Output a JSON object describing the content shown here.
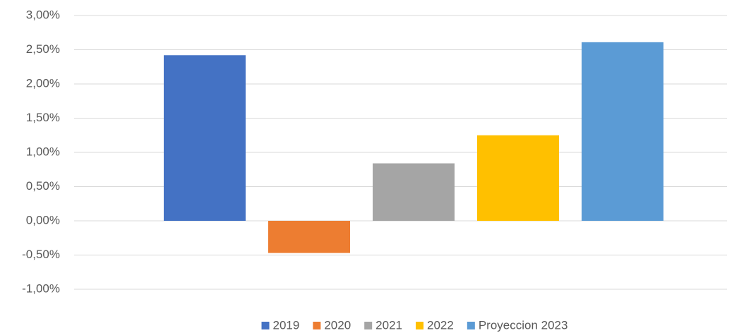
{
  "chart_data": {
    "type": "bar",
    "categories": [
      null
    ],
    "series": [
      {
        "name": "2019",
        "color": "#4472c4",
        "values": [
          2.42
        ]
      },
      {
        "name": "2020",
        "color": "#ed7d31",
        "values": [
          -0.47
        ]
      },
      {
        "name": "2021",
        "color": "#a5a5a5",
        "values": [
          0.84
        ]
      },
      {
        "name": "2022",
        "color": "#ffc000",
        "values": [
          1.25
        ]
      },
      {
        "name": "Proyeccion 2023",
        "color": "#5b9bd5",
        "values": [
          2.61
        ]
      }
    ],
    "ylim": [
      -1,
      3
    ],
    "yticks": [
      {
        "value": -1,
        "label": "-1,00%"
      },
      {
        "value": -0.5,
        "label": "-0,50%"
      },
      {
        "value": 0,
        "label": "0,00%"
      },
      {
        "value": 0.5,
        "label": "0,50%"
      },
      {
        "value": 1,
        "label": "1,00%"
      },
      {
        "value": 1.5,
        "label": "1,50%"
      },
      {
        "value": 2,
        "label": "2,00%"
      },
      {
        "value": 2.5,
        "label": "2,50%"
      },
      {
        "value": 3,
        "label": "3,00%"
      }
    ],
    "grid": true,
    "legend": "bottom"
  }
}
